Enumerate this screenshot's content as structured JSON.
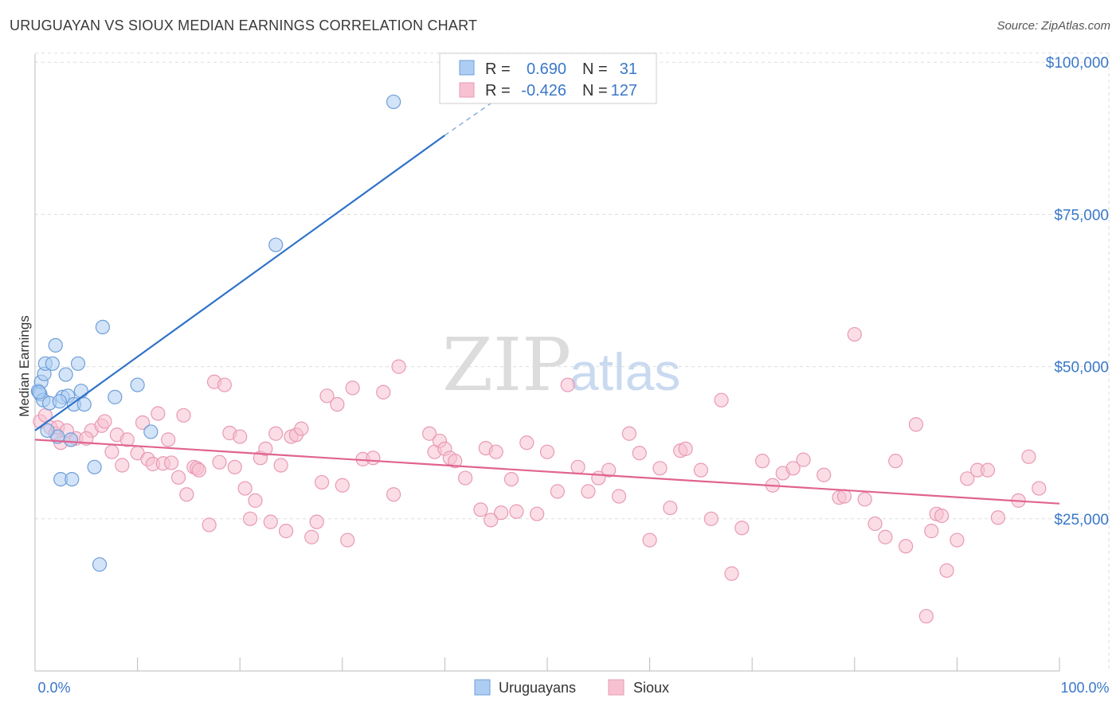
{
  "title": "URUGUAYAN VS SIOUX MEDIAN EARNINGS CORRELATION CHART",
  "source": "Source: ZipAtlas.com",
  "watermark": {
    "zip": "ZIP",
    "atlas": "atlas"
  },
  "colors": {
    "uruguayan_fill": "#aecdf2",
    "uruguayan_stroke": "#6e9fd9",
    "uruguayan_line": "#2f72c9",
    "sioux_fill": "#f7c1d2",
    "sioux_stroke": "#e89ab4",
    "sioux_line": "#e0648f",
    "grid": "#dddddd",
    "axis_label": "#3a78c9"
  },
  "legend": {
    "rows": [
      {
        "r_label": "R =",
        "r_value": "0.690",
        "n_label": "N =",
        "n_value": "31"
      },
      {
        "r_label": "R =",
        "r_value": "-0.426",
        "n_label": "N =",
        "n_value": "127"
      }
    ]
  },
  "bottom_legend": [
    "Uruguayans",
    "Sioux"
  ],
  "chart_data": {
    "type": "scatter",
    "title": "URUGUAYAN VS SIOUX MEDIAN EARNINGS CORRELATION CHART",
    "xlabel": "",
    "ylabel": "Median Earnings",
    "xlim": [
      0,
      100
    ],
    "ylim": [
      0,
      105000
    ],
    "x_tick_labels": [
      "0.0%",
      "100.0%"
    ],
    "y_ticks": [
      25000,
      50000,
      75000,
      100000
    ],
    "y_tick_labels": [
      "$25,000",
      "$50,000",
      "$75,000",
      "$100,000"
    ],
    "series": [
      {
        "name": "Uruguayans",
        "trend": {
          "x": [
            0,
            40
          ],
          "y": [
            39500,
            88000
          ],
          "dashed_to": [
            46,
            95000
          ]
        },
        "points": [
          [
            0.3,
            46000
          ],
          [
            0.5,
            45500
          ],
          [
            0.6,
            47500
          ],
          [
            0.8,
            44500
          ],
          [
            0.9,
            48800
          ],
          [
            1.0,
            50500
          ],
          [
            1.4,
            44000
          ],
          [
            1.7,
            50500
          ],
          [
            2.0,
            53500
          ],
          [
            2.2,
            38500
          ],
          [
            2.5,
            31500
          ],
          [
            2.7,
            45000
          ],
          [
            3.0,
            48700
          ],
          [
            3.2,
            45200
          ],
          [
            3.5,
            38000
          ],
          [
            3.6,
            31500
          ],
          [
            3.8,
            43800
          ],
          [
            4.2,
            50500
          ],
          [
            4.5,
            46000
          ],
          [
            4.8,
            43800
          ],
          [
            5.8,
            33500
          ],
          [
            6.3,
            17500
          ],
          [
            6.6,
            56500
          ],
          [
            7.8,
            45000
          ],
          [
            10.0,
            47000
          ],
          [
            11.3,
            39300
          ],
          [
            23.5,
            70000
          ],
          [
            35.0,
            93500
          ],
          [
            1.2,
            39500
          ],
          [
            2.4,
            44300
          ],
          [
            0.4,
            45800
          ]
        ]
      },
      {
        "name": "Sioux",
        "trend": {
          "x": [
            0,
            100
          ],
          "y": [
            38000,
            27500
          ]
        },
        "points": [
          [
            0.5,
            41000
          ],
          [
            1.5,
            40000
          ],
          [
            2.0,
            39000
          ],
          [
            2.5,
            37500
          ],
          [
            3.5,
            38000
          ],
          [
            4.0,
            38200
          ],
          [
            5.5,
            39500
          ],
          [
            6.5,
            40300
          ],
          [
            6.8,
            41000
          ],
          [
            7.5,
            36000
          ],
          [
            8.0,
            38800
          ],
          [
            8.5,
            33800
          ],
          [
            9.0,
            38000
          ],
          [
            10.0,
            35800
          ],
          [
            10.5,
            40800
          ],
          [
            11.0,
            34800
          ],
          [
            11.5,
            34000
          ],
          [
            12.0,
            42300
          ],
          [
            12.5,
            34100
          ],
          [
            13.0,
            38000
          ],
          [
            13.3,
            34200
          ],
          [
            14.0,
            31800
          ],
          [
            14.5,
            42000
          ],
          [
            14.8,
            29000
          ],
          [
            15.5,
            33500
          ],
          [
            15.8,
            33300
          ],
          [
            16.0,
            33000
          ],
          [
            17.0,
            24000
          ],
          [
            17.5,
            47500
          ],
          [
            18.0,
            34300
          ],
          [
            18.5,
            47000
          ],
          [
            19.0,
            39100
          ],
          [
            19.5,
            33500
          ],
          [
            20.0,
            38500
          ],
          [
            20.5,
            30000
          ],
          [
            21.0,
            25000
          ],
          [
            21.5,
            28000
          ],
          [
            22.0,
            35000
          ],
          [
            22.5,
            36500
          ],
          [
            23.0,
            24500
          ],
          [
            23.5,
            39000
          ],
          [
            24.0,
            33800
          ],
          [
            24.5,
            23000
          ],
          [
            25.0,
            38500
          ],
          [
            25.5,
            38800
          ],
          [
            26.0,
            39800
          ],
          [
            27.0,
            22000
          ],
          [
            27.5,
            24500
          ],
          [
            28.0,
            31000
          ],
          [
            28.5,
            45200
          ],
          [
            29.5,
            43800
          ],
          [
            30.0,
            30500
          ],
          [
            30.5,
            21500
          ],
          [
            31.0,
            46500
          ],
          [
            32.0,
            34800
          ],
          [
            33.0,
            35000
          ],
          [
            34.0,
            45800
          ],
          [
            35.0,
            29000
          ],
          [
            35.5,
            50000
          ],
          [
            38.5,
            39000
          ],
          [
            39.0,
            36000
          ],
          [
            39.5,
            37800
          ],
          [
            40.0,
            36500
          ],
          [
            40.5,
            35000
          ],
          [
            41.0,
            34500
          ],
          [
            42.0,
            31700
          ],
          [
            43.5,
            26500
          ],
          [
            44.0,
            36600
          ],
          [
            44.5,
            24800
          ],
          [
            45.0,
            36000
          ],
          [
            45.5,
            26000
          ],
          [
            46.5,
            31500
          ],
          [
            47.0,
            26200
          ],
          [
            48.0,
            37500
          ],
          [
            49.0,
            25800
          ],
          [
            50.0,
            36000
          ],
          [
            51.0,
            29500
          ],
          [
            52.0,
            47000
          ],
          [
            53.0,
            33500
          ],
          [
            54.0,
            29500
          ],
          [
            55.0,
            31700
          ],
          [
            56.0,
            33000
          ],
          [
            57.0,
            28700
          ],
          [
            58.0,
            39000
          ],
          [
            59.0,
            35800
          ],
          [
            60.0,
            21500
          ],
          [
            61.0,
            33300
          ],
          [
            62.0,
            26800
          ],
          [
            63.0,
            36200
          ],
          [
            63.5,
            36500
          ],
          [
            65.0,
            33000
          ],
          [
            66.0,
            25000
          ],
          [
            67.0,
            44500
          ],
          [
            68.0,
            16000
          ],
          [
            69.0,
            23500
          ],
          [
            71.0,
            34500
          ],
          [
            72.0,
            30500
          ],
          [
            73.0,
            32500
          ],
          [
            74.0,
            33300
          ],
          [
            75.0,
            34700
          ],
          [
            77.0,
            32200
          ],
          [
            78.5,
            28500
          ],
          [
            79.0,
            28700
          ],
          [
            80.0,
            55300
          ],
          [
            81.0,
            28200
          ],
          [
            82.0,
            24200
          ],
          [
            83.0,
            22000
          ],
          [
            84.0,
            34500
          ],
          [
            85.0,
            20500
          ],
          [
            86.0,
            40500
          ],
          [
            87.0,
            9000
          ],
          [
            87.5,
            23000
          ],
          [
            88.0,
            25800
          ],
          [
            88.5,
            25500
          ],
          [
            89.0,
            16500
          ],
          [
            90.0,
            21500
          ],
          [
            91.0,
            31600
          ],
          [
            92.0,
            33000
          ],
          [
            93.0,
            33000
          ],
          [
            94.0,
            25200
          ],
          [
            96.0,
            28000
          ],
          [
            97.0,
            35200
          ],
          [
            98.0,
            30000
          ],
          [
            1.0,
            42000
          ],
          [
            2.2,
            40000
          ],
          [
            3.1,
            39500
          ],
          [
            5.0,
            38200
          ]
        ]
      }
    ]
  }
}
